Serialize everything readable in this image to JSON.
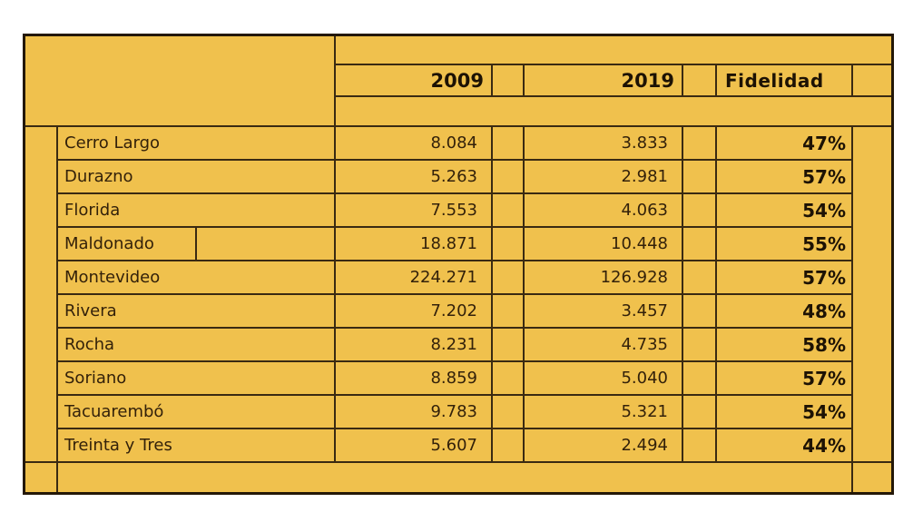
{
  "table": {
    "headers": {
      "c2009": "2009",
      "c2019": "2019",
      "fidelidad": "Fidelidad"
    },
    "rows": [
      {
        "name": "Cerro Largo",
        "v2009": "8.084",
        "v2019": "3.833",
        "fid": "47%"
      },
      {
        "name": "Durazno",
        "v2009": "5.263",
        "v2019": "2.981",
        "fid": "57%"
      },
      {
        "name": "Florida",
        "v2009": "7.553",
        "v2019": "4.063",
        "fid": "54%"
      },
      {
        "name": "Maldonado",
        "v2009": "18.871",
        "v2019": "10.448",
        "fid": "55%"
      },
      {
        "name": "Montevideo",
        "v2009": "224.271",
        "v2019": "126.928",
        "fid": "57%"
      },
      {
        "name": "Rivera",
        "v2009": "7.202",
        "v2019": "3.457",
        "fid": "48%"
      },
      {
        "name": "Rocha",
        "v2009": "8.231",
        "v2019": "4.735",
        "fid": "58%"
      },
      {
        "name": "Soriano",
        "v2009": "8.859",
        "v2019": "5.040",
        "fid": "57%"
      },
      {
        "name": "Tacuarembó",
        "v2009": "9.783",
        "v2019": "5.321",
        "fid": "54%"
      },
      {
        "name": "Treinta y Tres",
        "v2009": "5.607",
        "v2019": "2.494",
        "fid": "44%"
      }
    ]
  },
  "colors": {
    "cell_fill": "#f0c14d",
    "grid_line": "#3a2a12",
    "outer_border": "#241808",
    "text": "#33210a",
    "bold_text": "#1d1204",
    "page_background": "#ffffff"
  },
  "chart_data": {
    "type": "table",
    "columns": [
      "",
      "2009",
      "2019",
      "Fidelidad"
    ],
    "rows": [
      [
        "Cerro Largo",
        8084,
        3833,
        "47%"
      ],
      [
        "Durazno",
        5263,
        2981,
        "57%"
      ],
      [
        "Florida",
        7553,
        4063,
        "54%"
      ],
      [
        "Maldonado",
        18871,
        10448,
        "55%"
      ],
      [
        "Montevideo",
        224271,
        126928,
        "57%"
      ],
      [
        "Rivera",
        7202,
        3457,
        "48%"
      ],
      [
        "Rocha",
        8231,
        4735,
        "58%"
      ],
      [
        "Soriano",
        8859,
        5040,
        "57%"
      ],
      [
        "Tacuarembó",
        9783,
        5321,
        "54%"
      ],
      [
        "Treinta y Tres",
        5607,
        2494,
        "44%"
      ]
    ],
    "notes": "Fidelidad column shows bold percentage values; number columns use dot thousands separators; selected-cell cursor visible on Maldonado row"
  }
}
